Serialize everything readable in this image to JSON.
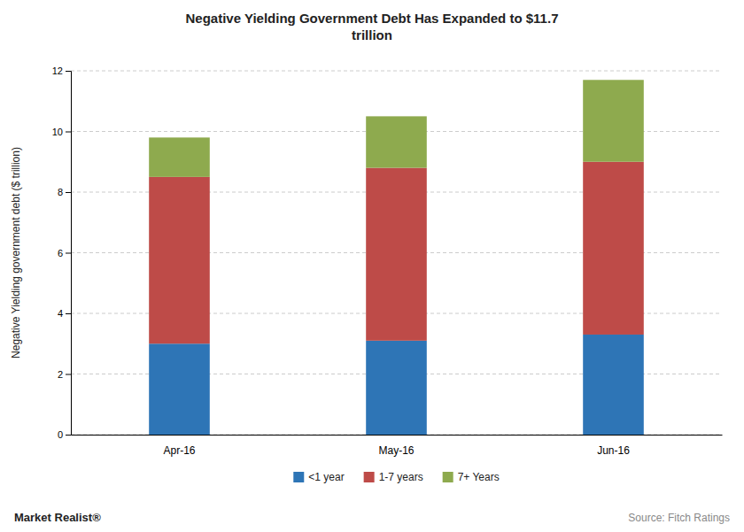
{
  "chart_data": {
    "type": "bar",
    "stacked": true,
    "title": "Negative Yielding  Government  Debt Has Expanded to $11.7\ntrillion",
    "y_label": "Negative Yielding government debt ($ trillion)",
    "categories": [
      "Apr-16",
      "May-16",
      "Jun-16"
    ],
    "series": [
      {
        "name": "<1 year",
        "color": "#2E75B6",
        "values": [
          3.0,
          3.1,
          3.3
        ]
      },
      {
        "name": "1-7 years",
        "color": "#BE4B48",
        "values": [
          5.5,
          5.7,
          5.7
        ]
      },
      {
        "name": "7+ Years",
        "color": "#8EAA4E",
        "values": [
          1.3,
          1.7,
          2.7
        ]
      }
    ],
    "ylim": [
      0,
      12
    ],
    "yticks": [
      0,
      2,
      4,
      6,
      8,
      10,
      12
    ],
    "grid": true,
    "legend": "bottom",
    "annotations": [
      "Market Realist®",
      "Source: Fitch Ratings"
    ]
  }
}
